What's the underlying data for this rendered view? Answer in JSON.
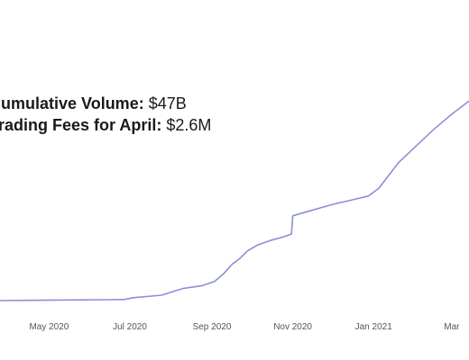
{
  "annotations": {
    "volume_label": "Cumulative Volume:",
    "volume_value": "$47B",
    "fees_label": "Trading Fees for April:",
    "fees_value": "$2.6M"
  },
  "chart_data": {
    "type": "line",
    "title": "",
    "xlabel": "",
    "ylabel": "",
    "x_tick_labels": [
      "May 2020",
      "Jul 2020",
      "Sep 2020",
      "Nov 2020",
      "Jan 2021",
      "Mar"
    ],
    "x_tick_dates": [
      "2020-05-01",
      "2020-07-01",
      "2020-09-01",
      "2020-11-01",
      "2021-01-01",
      "2021-03-01"
    ],
    "xlim": [
      "2020-03-25",
      "2021-03-14"
    ],
    "ylim": [
      0,
      50
    ],
    "grid": false,
    "legend": "none",
    "colors": {
      "line": "#8b8fd8",
      "axis_text": "#555555"
    },
    "series": [
      {
        "x": [
          "2020-03-25",
          "2020-04-15",
          "2020-05-15",
          "2020-06-15",
          "2020-06-27",
          "2020-07-04",
          "2020-07-25",
          "2020-08-01",
          "2020-08-10",
          "2020-08-25",
          "2020-09-03",
          "2020-09-10",
          "2020-09-16",
          "2020-09-22",
          "2020-09-28",
          "2020-10-05",
          "2020-10-15",
          "2020-10-25",
          "2020-10-31",
          "2020-11-01",
          "2020-11-15",
          "2020-12-01",
          "2020-12-15",
          "2020-12-28",
          "2021-01-05",
          "2021-01-20",
          "2021-02-01",
          "2021-02-15",
          "2021-03-01",
          "2021-03-14"
        ],
        "y": [
          0.0,
          0.05,
          0.1,
          0.15,
          0.2,
          0.5,
          0.9,
          1.4,
          2.0,
          2.5,
          3.2,
          4.5,
          6.0,
          7.0,
          8.3,
          9.2,
          10.0,
          10.6,
          11.1,
          14.1,
          15.0,
          16.0,
          16.7,
          17.4,
          18.7,
          23.0,
          25.5,
          28.4,
          31.0,
          33.2
        ]
      }
    ]
  }
}
